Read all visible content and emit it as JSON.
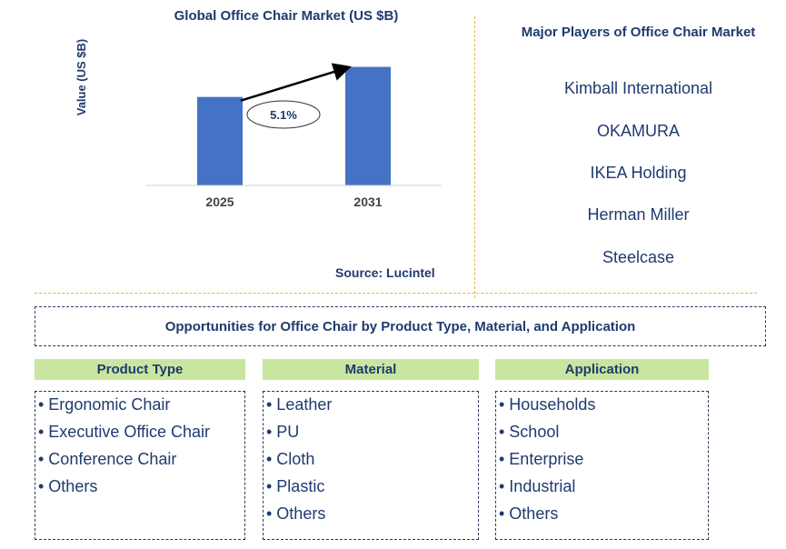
{
  "chart_data": {
    "type": "bar",
    "title": "Global Office Chair Market (US $B)",
    "ylabel": "Value (US $B)",
    "xlabel": "",
    "categories": [
      "2025",
      "2031"
    ],
    "values": [
      1.0,
      1.34
    ],
    "ylim": [
      0,
      1.5
    ],
    "annotations": [
      {
        "text": "5.1%",
        "from": "2025",
        "to": "2031"
      }
    ],
    "colors": {
      "bar": "#4472c4",
      "axis": "#d0d0d0",
      "text": "#1f3a6e"
    }
  },
  "source": "Source: Lucintel",
  "players": {
    "title": "Major Players of Office Chair Market",
    "items": [
      "Kimball International",
      "OKAMURA",
      "IKEA Holding",
      "Herman Miller",
      "Steelcase"
    ]
  },
  "opportunities_title": "Opportunities for Office Chair by Product Type, Material, and Application",
  "categories": [
    {
      "title": "Product Type",
      "items": [
        "• Ergonomic Chair",
        "• Executive Office Chair",
        "• Conference Chair",
        "• Others"
      ]
    },
    {
      "title": "Material",
      "items": [
        "• Leather",
        "• PU",
        "• Cloth",
        "• Plastic",
        "• Others"
      ]
    },
    {
      "title": "Application",
      "items": [
        "• Households",
        "• School",
        "• Enterprise",
        "• Industrial",
        "• Others"
      ]
    }
  ]
}
